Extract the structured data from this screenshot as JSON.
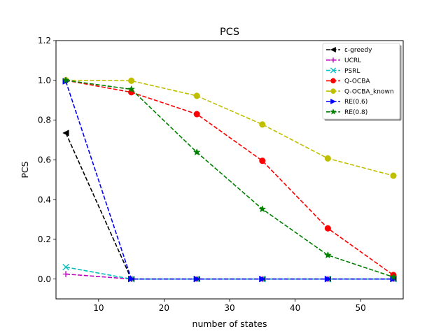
{
  "chart_data": {
    "type": "line",
    "title": "PCS",
    "xlabel": "number of states",
    "ylabel": "PCS",
    "xlim": [
      3.5,
      56.5
    ],
    "ylim": [
      -0.1,
      1.2
    ],
    "xticks": [
      10,
      20,
      30,
      40,
      50
    ],
    "xtick_labels": [
      "10",
      "20",
      "30",
      "40",
      "50"
    ],
    "yticks": [
      0.0,
      0.2,
      0.4,
      0.6,
      0.8,
      1.0,
      1.2
    ],
    "ytick_labels": [
      "0.0",
      "0.2",
      "0.4",
      "0.6",
      "0.8",
      "1.0",
      "1.2"
    ],
    "grid": false,
    "legend_position": "top-right",
    "x": [
      5,
      15,
      25,
      35,
      45,
      55
    ],
    "series": [
      {
        "name": "ε-greedy",
        "color": "#000000",
        "marker": "triangle-left",
        "values": [
          0.735,
          0.0,
          0.0,
          0.0,
          0.0,
          0.0
        ]
      },
      {
        "name": "UCRL",
        "color": "#bf00bf",
        "marker": "plus",
        "values": [
          0.025,
          0.0,
          0.0,
          0.0,
          0.0,
          0.0
        ]
      },
      {
        "name": "PSRL",
        "color": "#00bfbf",
        "marker": "x",
        "values": [
          0.06,
          0.0,
          0.0,
          0.0,
          0.0,
          0.0
        ]
      },
      {
        "name": "Q-OCBA",
        "color": "#ff0000",
        "marker": "circle",
        "values": [
          1.0,
          0.94,
          0.83,
          0.595,
          0.255,
          0.02
        ]
      },
      {
        "name": "Q-OCBA_known",
        "color": "#bfbf00",
        "marker": "circle",
        "values": [
          1.0,
          0.998,
          0.922,
          0.778,
          0.607,
          0.52
        ]
      },
      {
        "name": "RE(0.6)",
        "color": "#0000ff",
        "marker": "triangle-right",
        "values": [
          0.995,
          0.0,
          0.0,
          0.0,
          0.0,
          0.0
        ]
      },
      {
        "name": "RE(0.8)",
        "color": "#008000",
        "marker": "star",
        "values": [
          1.0,
          0.955,
          0.638,
          0.352,
          0.12,
          0.01
        ]
      }
    ]
  }
}
